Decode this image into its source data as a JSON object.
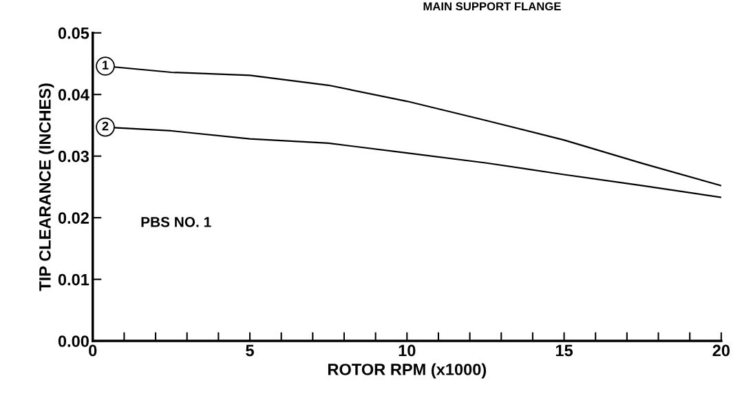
{
  "chart_data": {
    "type": "line",
    "xlabel": "ROTOR RPM (x1000)",
    "ylabel": "TIP CLEARANCE (INCHES)",
    "x": [
      0.4,
      2.5,
      5,
      7.5,
      10,
      12.5,
      15,
      17.5,
      20
    ],
    "series": [
      {
        "name": "1",
        "color": "#000000",
        "values": [
          0.0446,
          0.0436,
          0.0431,
          0.0415,
          0.0389,
          0.0358,
          0.0326,
          0.0288,
          0.0252
        ]
      },
      {
        "name": "2",
        "color": "#000000",
        "values": [
          0.0347,
          0.0341,
          0.0328,
          0.0321,
          0.0305,
          0.0289,
          0.027,
          0.0252,
          0.0233
        ]
      }
    ],
    "xlim": [
      0,
      20
    ],
    "ylim": [
      0,
      0.05
    ],
    "xticks": [
      0,
      {
        "value": 1,
        "label": null
      },
      {
        "value": 2,
        "label": null
      },
      {
        "value": 3,
        "label": null
      },
      {
        "value": 4,
        "label": null
      },
      5,
      {
        "value": 6,
        "label": null
      },
      {
        "value": 7,
        "label": null
      },
      {
        "value": 8,
        "label": null
      },
      {
        "value": 9,
        "label": null
      },
      10,
      {
        "value": 11,
        "label": null
      },
      {
        "value": 12,
        "label": null
      },
      {
        "value": 13,
        "label": null
      },
      {
        "value": 14,
        "label": null
      },
      15,
      {
        "value": 16,
        "label": null
      },
      {
        "value": 17,
        "label": null
      },
      {
        "value": 18,
        "label": null
      },
      {
        "value": 19,
        "label": null
      },
      20
    ],
    "yticks": [
      {
        "value": 0,
        "label": "0.00"
      },
      0.01,
      0.02,
      0.03,
      0.04,
      0.05
    ],
    "annotations": [
      "PBS NO. 1",
      "MAIN SUPPORT FLANGE"
    ],
    "grid": false,
    "legend": false,
    "marker": "none",
    "line_style": "solid"
  }
}
